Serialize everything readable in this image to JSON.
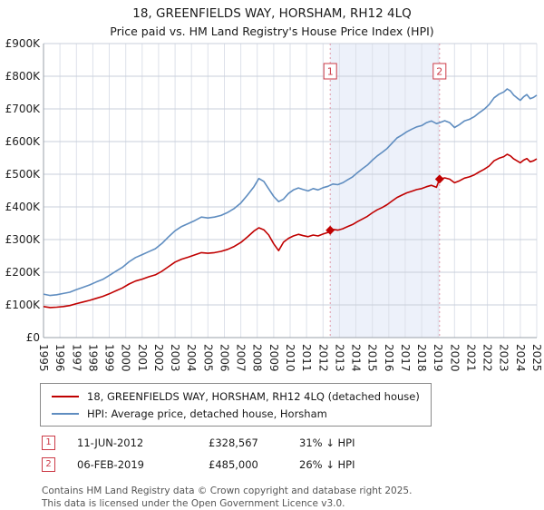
{
  "title": "18, GREENFIELDS WAY, HORSHAM, RH12 4LQ",
  "subtitle": "Price paid vs. HM Land Registry's House Price Index (HPI)",
  "chart_data": {
    "type": "line",
    "x_range": [
      1995,
      2025
    ],
    "y_range": [
      0,
      900000
    ],
    "x_ticks": [
      1995,
      1996,
      1997,
      1998,
      1999,
      2000,
      2001,
      2002,
      2003,
      2004,
      2005,
      2006,
      2007,
      2008,
      2009,
      2010,
      2011,
      2012,
      2013,
      2014,
      2015,
      2016,
      2017,
      2018,
      2019,
      2020,
      2021,
      2022,
      2023,
      2024,
      2025
    ],
    "y_tick_labels": [
      "£0",
      "£100K",
      "£200K",
      "£300K",
      "£400K",
      "£500K",
      "£600K",
      "£700K",
      "£800K",
      "£900K"
    ],
    "grid": true,
    "legend_position": "bottom",
    "band": {
      "from": 2012.44,
      "to": 2019.09,
      "color": "#edf1fa"
    },
    "colors": {
      "grid_h": "#c9cfdb",
      "grid_v": "#dde1ea",
      "axis": "#9aa0a8",
      "sale_line": "#e098a8",
      "sale_box": "#cc3b47"
    },
    "series": [
      {
        "name": "18, GREENFIELDS WAY, HORSHAM, RH12 4LQ (detached house)",
        "color": "#c00000",
        "points": [
          [
            1995.0,
            95000
          ],
          [
            1995.4,
            92000
          ],
          [
            1995.8,
            93000
          ],
          [
            1996.2,
            95000
          ],
          [
            1996.6,
            98000
          ],
          [
            1997.0,
            104000
          ],
          [
            1997.4,
            109000
          ],
          [
            1997.8,
            114000
          ],
          [
            1998.2,
            120000
          ],
          [
            1998.6,
            126000
          ],
          [
            1999.0,
            134000
          ],
          [
            1999.4,
            143000
          ],
          [
            1999.8,
            152000
          ],
          [
            2000.2,
            164000
          ],
          [
            2000.6,
            173000
          ],
          [
            2001.0,
            179000
          ],
          [
            2001.4,
            186000
          ],
          [
            2001.8,
            192000
          ],
          [
            2002.2,
            203000
          ],
          [
            2002.6,
            217000
          ],
          [
            2003.0,
            231000
          ],
          [
            2003.4,
            240000
          ],
          [
            2003.8,
            246000
          ],
          [
            2004.2,
            253000
          ],
          [
            2004.6,
            260000
          ],
          [
            2005.0,
            258000
          ],
          [
            2005.4,
            260000
          ],
          [
            2005.8,
            264000
          ],
          [
            2006.2,
            270000
          ],
          [
            2006.6,
            279000
          ],
          [
            2007.0,
            291000
          ],
          [
            2007.4,
            308000
          ],
          [
            2007.8,
            326000
          ],
          [
            2008.1,
            336000
          ],
          [
            2008.4,
            330000
          ],
          [
            2008.7,
            314000
          ],
          [
            2009.0,
            287000
          ],
          [
            2009.3,
            266000
          ],
          [
            2009.6,
            292000
          ],
          [
            2009.9,
            304000
          ],
          [
            2010.2,
            311000
          ],
          [
            2010.5,
            316000
          ],
          [
            2010.8,
            312000
          ],
          [
            2011.1,
            309000
          ],
          [
            2011.4,
            314000
          ],
          [
            2011.7,
            311000
          ],
          [
            2012.0,
            317000
          ],
          [
            2012.3,
            322000
          ],
          [
            2012.44,
            328567
          ],
          [
            2012.6,
            331000
          ],
          [
            2012.9,
            329000
          ],
          [
            2013.2,
            333000
          ],
          [
            2013.5,
            340000
          ],
          [
            2013.8,
            346000
          ],
          [
            2014.1,
            355000
          ],
          [
            2014.4,
            363000
          ],
          [
            2014.7,
            371000
          ],
          [
            2015.0,
            382000
          ],
          [
            2015.3,
            391000
          ],
          [
            2015.6,
            398000
          ],
          [
            2015.9,
            407000
          ],
          [
            2016.2,
            418000
          ],
          [
            2016.5,
            429000
          ],
          [
            2016.8,
            436000
          ],
          [
            2017.1,
            443000
          ],
          [
            2017.4,
            448000
          ],
          [
            2017.7,
            453000
          ],
          [
            2018.0,
            456000
          ],
          [
            2018.3,
            462000
          ],
          [
            2018.6,
            466000
          ],
          [
            2018.9,
            460000
          ],
          [
            2019.09,
            485000
          ],
          [
            2019.4,
            489000
          ],
          [
            2019.7,
            485000
          ],
          [
            2020.0,
            474000
          ],
          [
            2020.3,
            480000
          ],
          [
            2020.6,
            488000
          ],
          [
            2020.9,
            492000
          ],
          [
            2021.2,
            498000
          ],
          [
            2021.5,
            507000
          ],
          [
            2021.8,
            515000
          ],
          [
            2022.1,
            525000
          ],
          [
            2022.4,
            541000
          ],
          [
            2022.7,
            549000
          ],
          [
            2023.0,
            554000
          ],
          [
            2023.2,
            561000
          ],
          [
            2023.4,
            556000
          ],
          [
            2023.6,
            547000
          ],
          [
            2023.8,
            541000
          ],
          [
            2024.0,
            535000
          ],
          [
            2024.2,
            543000
          ],
          [
            2024.4,
            548000
          ],
          [
            2024.6,
            538000
          ],
          [
            2024.8,
            541000
          ],
          [
            2025.0,
            547000
          ]
        ]
      },
      {
        "name": "HPI: Average price, detached house, Horsham",
        "color": "#5f8dc0",
        "points": [
          [
            1995.0,
            133000
          ],
          [
            1995.4,
            129000
          ],
          [
            1995.8,
            131000
          ],
          [
            1996.2,
            135000
          ],
          [
            1996.6,
            139000
          ],
          [
            1997.0,
            147000
          ],
          [
            1997.4,
            154000
          ],
          [
            1997.8,
            161000
          ],
          [
            1998.2,
            170000
          ],
          [
            1998.6,
            178000
          ],
          [
            1999.0,
            190000
          ],
          [
            1999.4,
            203000
          ],
          [
            1999.8,
            215000
          ],
          [
            2000.2,
            232000
          ],
          [
            2000.6,
            245000
          ],
          [
            2001.0,
            254000
          ],
          [
            2001.4,
            263000
          ],
          [
            2001.8,
            272000
          ],
          [
            2002.2,
            288000
          ],
          [
            2002.6,
            308000
          ],
          [
            2003.0,
            327000
          ],
          [
            2003.4,
            340000
          ],
          [
            2003.8,
            349000
          ],
          [
            2004.2,
            358000
          ],
          [
            2004.6,
            369000
          ],
          [
            2005.0,
            366000
          ],
          [
            2005.4,
            369000
          ],
          [
            2005.8,
            374000
          ],
          [
            2006.2,
            383000
          ],
          [
            2006.6,
            395000
          ],
          [
            2007.0,
            412000
          ],
          [
            2007.4,
            436000
          ],
          [
            2007.8,
            462000
          ],
          [
            2008.1,
            487000
          ],
          [
            2008.4,
            478000
          ],
          [
            2008.7,
            455000
          ],
          [
            2009.0,
            432000
          ],
          [
            2009.3,
            416000
          ],
          [
            2009.6,
            424000
          ],
          [
            2009.9,
            441000
          ],
          [
            2010.2,
            452000
          ],
          [
            2010.5,
            458000
          ],
          [
            2010.8,
            453000
          ],
          [
            2011.1,
            449000
          ],
          [
            2011.4,
            456000
          ],
          [
            2011.7,
            452000
          ],
          [
            2012.0,
            459000
          ],
          [
            2012.3,
            463000
          ],
          [
            2012.6,
            470000
          ],
          [
            2012.9,
            468000
          ],
          [
            2013.2,
            474000
          ],
          [
            2013.5,
            483000
          ],
          [
            2013.8,
            492000
          ],
          [
            2014.1,
            505000
          ],
          [
            2014.4,
            517000
          ],
          [
            2014.7,
            528000
          ],
          [
            2015.0,
            543000
          ],
          [
            2015.3,
            556000
          ],
          [
            2015.6,
            567000
          ],
          [
            2015.9,
            579000
          ],
          [
            2016.2,
            595000
          ],
          [
            2016.5,
            611000
          ],
          [
            2016.8,
            620000
          ],
          [
            2017.1,
            630000
          ],
          [
            2017.4,
            638000
          ],
          [
            2017.7,
            645000
          ],
          [
            2018.0,
            649000
          ],
          [
            2018.3,
            658000
          ],
          [
            2018.6,
            663000
          ],
          [
            2018.9,
            655000
          ],
          [
            2019.1,
            658000
          ],
          [
            2019.4,
            664000
          ],
          [
            2019.7,
            658000
          ],
          [
            2020.0,
            643000
          ],
          [
            2020.3,
            652000
          ],
          [
            2020.6,
            663000
          ],
          [
            2020.9,
            668000
          ],
          [
            2021.2,
            676000
          ],
          [
            2021.5,
            688000
          ],
          [
            2021.8,
            699000
          ],
          [
            2022.1,
            713000
          ],
          [
            2022.4,
            734000
          ],
          [
            2022.7,
            745000
          ],
          [
            2023.0,
            752000
          ],
          [
            2023.2,
            761000
          ],
          [
            2023.4,
            755000
          ],
          [
            2023.6,
            742000
          ],
          [
            2023.8,
            734000
          ],
          [
            2024.0,
            726000
          ],
          [
            2024.2,
            737000
          ],
          [
            2024.4,
            744000
          ],
          [
            2024.6,
            731000
          ],
          [
            2024.8,
            735000
          ],
          [
            2025.0,
            742000
          ]
        ]
      }
    ],
    "sales": [
      {
        "num": "1",
        "x": 2012.44,
        "y": 328567,
        "date": "11-JUN-2012",
        "price": "£328,567",
        "vs_hpi": "31% ↓ HPI"
      },
      {
        "num": "2",
        "x": 2019.09,
        "y": 485000,
        "date": "06-FEB-2019",
        "price": "£485,000",
        "vs_hpi": "26% ↓ HPI"
      }
    ]
  },
  "footer": {
    "line1": "Contains HM Land Registry data © Crown copyright and database right 2025.",
    "line2": "This data is licensed under the Open Government Licence v3.0."
  }
}
